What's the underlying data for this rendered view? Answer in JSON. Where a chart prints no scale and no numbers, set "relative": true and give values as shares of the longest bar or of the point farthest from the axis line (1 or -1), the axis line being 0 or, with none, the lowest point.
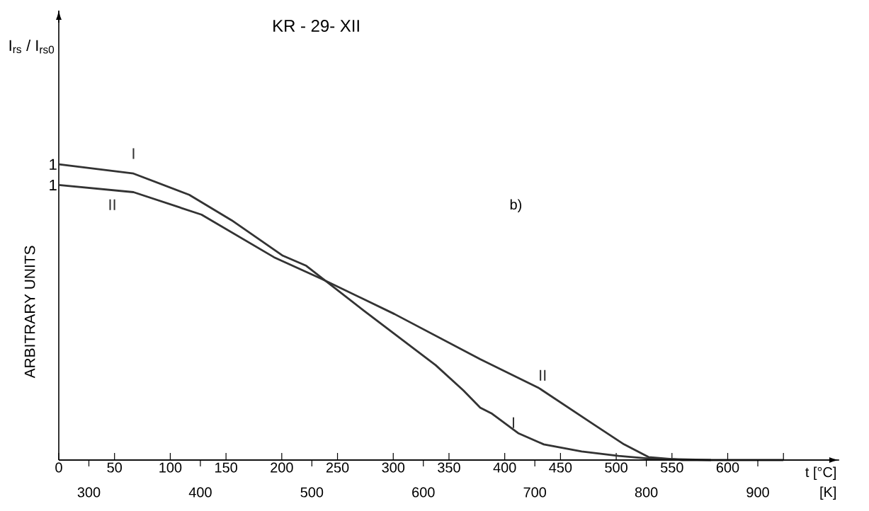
{
  "chart_data": {
    "type": "line",
    "title": "KR - 29- XII",
    "xlabel": "t [°C]",
    "x2label": "[K]",
    "ylabel": "ARBITRARY UNITS",
    "relative": true,
    "xlim": [
      0,
      700
    ],
    "xticks": [
      0,
      50,
      100,
      150,
      200,
      250,
      300,
      350,
      400,
      450,
      500,
      550,
      600,
      {
        "value": 650,
        "label": null
      }
    ],
    "x2lim": [
      273,
      973
    ],
    "x2ticks": [
      300,
      400,
      500,
      600,
      700,
      800,
      900
    ],
    "annotations": [
      "I$_{rs}$ / I$_{rs0}$",
      {
        "text": "1",
        "x": 0,
        "y": 1
      },
      {
        "text": "1",
        "x": 0,
        "y": 0.93
      },
      "b)"
    ],
    "series": [
      {
        "name": "I",
        "color": "#333333",
        "x": [
          0,
          67,
          117,
          155,
          201,
          222,
          274,
          338,
          363,
          378,
          388,
          412,
          435,
          469,
          502,
          529,
          585,
          650
        ],
        "values": [
          1,
          0.969,
          0.897,
          0.811,
          0.691,
          0.657,
          0.504,
          0.321,
          0.235,
          0.177,
          0.158,
          0.091,
          0.053,
          0.029,
          0.014,
          0.005,
          0,
          0
        ]
      },
      {
        "name": "II",
        "color": "#333333",
        "x": [
          0,
          67,
          128,
          193,
          235,
          301,
          378,
          430,
          480,
          507,
          529,
          559,
          585
        ],
        "values": [
          0.93,
          0.906,
          0.83,
          0.686,
          0.614,
          0.494,
          0.341,
          0.245,
          0.12,
          0.053,
          0.01,
          0,
          0
        ]
      }
    ]
  }
}
